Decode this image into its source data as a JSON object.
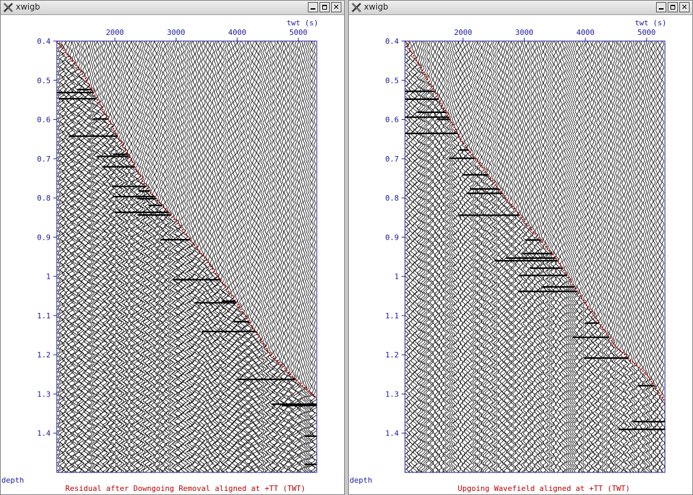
{
  "windows": [
    {
      "title": "xwigb",
      "xlabel": "twt (s)",
      "ylabel": "depth",
      "caption": "Residual after Downgoing Removal aligned at +TT (TWT)",
      "buttons": {
        "minimize": "minimize",
        "maximize": "maximize",
        "close": "close"
      }
    },
    {
      "title": "xwigb",
      "xlabel": "twt (s)",
      "ylabel": "depth",
      "caption": "Upgoing Wavefield aligned at +TT (TWT)",
      "buttons": {
        "minimize": "minimize",
        "maximize": "maximize",
        "close": "close"
      }
    }
  ],
  "chart_data": [
    {
      "type": "wiggle",
      "x_ticks": [
        "2000",
        "3000",
        "4000",
        "5000"
      ],
      "y_ticks": [
        "0.4",
        "0.5",
        "0.6",
        "0.7",
        "0.8",
        "0.9",
        "1",
        "1.1",
        "1.2",
        "1.3",
        "1.4"
      ],
      "xlim": [
        1050,
        5300
      ],
      "ylim": [
        0.4,
        1.5
      ],
      "first_break": [
        [
          1050,
          0.4
        ],
        [
          1500,
          0.49
        ],
        [
          2000,
          0.63
        ],
        [
          2500,
          0.77
        ],
        [
          3000,
          0.86
        ],
        [
          3500,
          0.96
        ],
        [
          4000,
          1.07
        ],
        [
          4500,
          1.19
        ],
        [
          5000,
          1.27
        ],
        [
          5300,
          1.31
        ]
      ],
      "colors": {
        "trace": "#000000",
        "first_break": "#c00000",
        "axis": "#1a1aa0"
      }
    },
    {
      "type": "wiggle",
      "x_ticks": [
        "2000",
        "3000",
        "4000",
        "5000"
      ],
      "y_ticks": [
        "0.4",
        "0.5",
        "0.6",
        "0.7",
        "0.8",
        "0.9",
        "1",
        "1.1",
        "1.2",
        "1.3",
        "1.4"
      ],
      "xlim": [
        1050,
        5300
      ],
      "ylim": [
        0.4,
        1.5
      ],
      "first_break": [
        [
          1050,
          0.4
        ],
        [
          1500,
          0.52
        ],
        [
          2000,
          0.66
        ],
        [
          2500,
          0.76
        ],
        [
          3000,
          0.86
        ],
        [
          3500,
          0.95
        ],
        [
          4000,
          1.07
        ],
        [
          4500,
          1.18
        ],
        [
          5000,
          1.25
        ],
        [
          5300,
          1.32
        ]
      ],
      "colors": {
        "trace": "#000000",
        "first_break": "#c00000",
        "axis": "#1a1aa0"
      }
    }
  ]
}
